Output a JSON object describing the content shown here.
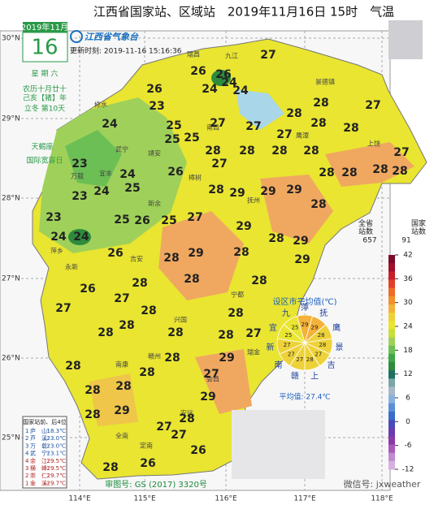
{
  "title": "江西省国家站、区域站　2019年11月16日 15时　气温",
  "calendar": {
    "month": "2019年11月",
    "day": "16",
    "weekday": "星 期 六",
    "lunar": "农历十月廿十",
    "year": "己亥【猪】年",
    "term": "立冬 第10天",
    "sign": "天蝎座",
    "festival": "国际宽容日"
  },
  "logo": "江西省气象台",
  "update_time": "更新时刻: 2019-11-16 15:16:36",
  "lat_labels": [
    "30°N",
    "29°N",
    "28°N",
    "27°N",
    "26°N",
    "25°N"
  ],
  "lon_labels": [
    "114°E",
    "115°E",
    "116°E",
    "117°E",
    "118°E"
  ],
  "places": [
    "瑞昌",
    "修水",
    "武宁",
    "靖安",
    "宜丰",
    "万载",
    "萍乡",
    "新余",
    "吉安",
    "永新",
    "兴国",
    "赣州",
    "南康",
    "安远",
    "全南",
    "定南",
    "抚州",
    "鹰潭",
    "上饶",
    "景德镇",
    "九江",
    "南昌",
    "樟树",
    "宁都",
    "瑞金",
    "会昌"
  ],
  "stations": [
    26,
    26,
    24,
    24,
    24,
    27,
    26,
    23,
    24,
    25,
    25,
    25,
    27,
    27,
    27,
    28,
    28,
    28,
    28,
    27,
    27,
    28,
    28,
    28,
    28,
    28,
    28,
    28,
    28,
    27,
    26,
    24,
    23,
    24,
    23,
    25,
    25,
    26,
    25,
    28,
    27,
    29,
    29,
    29,
    28,
    23,
    24,
    24,
    26,
    28,
    29,
    28,
    28,
    29,
    29,
    29,
    28,
    27,
    27,
    26,
    28,
    28,
    28,
    28,
    28,
    28,
    28,
    27,
    28,
    28,
    28,
    28,
    28,
    27,
    29,
    28,
    29,
    29,
    28,
    27,
    26,
    28,
    26,
    27,
    28
  ],
  "legend": {
    "left_title": "全省\n站数",
    "left_count": "657",
    "right_title": "国家\n站数",
    "right_count": "91",
    "ticks": [
      42,
      36,
      30,
      24,
      18,
      12,
      6,
      0,
      -6,
      -12
    ]
  },
  "pie": {
    "title": "设区市平均值(℃)",
    "average": "平均值: 27.4℃",
    "slices": [
      {
        "name": "萍",
        "value": 29
      },
      {
        "name": "抚",
        "value": 29
      },
      {
        "name": "鹰",
        "value": 28
      },
      {
        "name": "景",
        "value": 28
      },
      {
        "name": "吉",
        "value": 27
      },
      {
        "name": "上",
        "value": 28
      },
      {
        "name": "赣",
        "value": 27
      },
      {
        "name": "南",
        "value": 27
      },
      {
        "name": "新",
        "value": 27
      },
      {
        "name": "宜",
        "value": 25
      },
      {
        "name": "九",
        "value": 25
      }
    ]
  },
  "ranking": {
    "title": "国家站前、后4位",
    "rows": [
      [
        "1",
        "庐　山:",
        "18.3℃"
      ],
      [
        "2",
        "芦　溪:",
        "23.0℃"
      ],
      [
        "3",
        "万　载:",
        "23.0℃"
      ],
      [
        "4",
        "武　宁:",
        "23.1℃"
      ],
      [
        "4",
        "余　江:",
        "29.5℃"
      ],
      [
        "3",
        "横　峰:",
        "29.5℃"
      ],
      [
        "2",
        "崇　仁:",
        "29.7℃"
      ],
      [
        "1",
        "金　溪:",
        "29.7℃"
      ]
    ]
  },
  "map_number": "审图号: GS (2017) 3320号",
  "watermark": "微信号: jxweather"
}
